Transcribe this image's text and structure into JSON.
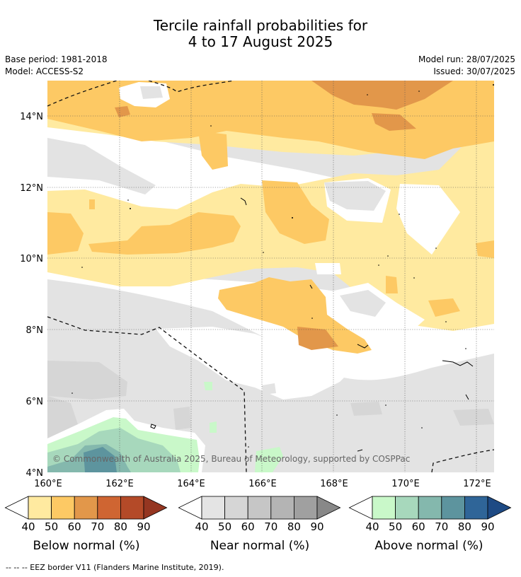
{
  "header": {
    "title_line1": "Tercile rainfall probabilities for",
    "title_line2": "4 to 17 August 2025",
    "base_period": "Base period: 1981-2018",
    "model": "Model: ACCESS-S2",
    "model_run": "Model run: 28/07/2025",
    "issued": "Issued: 30/07/2025"
  },
  "map": {
    "lat_labels": [
      "14°N",
      "12°N",
      "10°N",
      "8°N",
      "6°N",
      "4°N"
    ],
    "lon_labels": [
      "160°E",
      "162°E",
      "164°E",
      "166°E",
      "168°E",
      "170°E",
      "172°E"
    ],
    "copyright": "© Commonwealth of Australia 2025, Bureau of Meteorology, supported by COSPPac",
    "background_color": "#e3e3e3"
  },
  "colorbars": {
    "below": {
      "title": "Below normal (%)",
      "ticks": [
        "40",
        "50",
        "60",
        "70",
        "80",
        "90"
      ],
      "colors": [
        "#ffeaa0",
        "#fdc964",
        "#e2974a",
        "#cf6532",
        "#b44a28",
        "#953621"
      ]
    },
    "near": {
      "title": "Near normal (%)",
      "ticks": [
        "40",
        "50",
        "60",
        "70",
        "80",
        "90"
      ],
      "colors": [
        "#e4e4e4",
        "#d6d6d6",
        "#c6c6c6",
        "#b4b4b4",
        "#a0a0a0",
        "#888888"
      ]
    },
    "above": {
      "title": "Above normal (%)",
      "ticks": [
        "40",
        "50",
        "60",
        "70",
        "80",
        "90"
      ],
      "colors": [
        "#c9f8c9",
        "#a7d8bc",
        "#84b8ad",
        "#5d949e",
        "#2f6598",
        "#1e4a84"
      ]
    }
  },
  "footnote": "--  --  -- EEZ border V11 (Flanders Marine Institute, 2019)."
}
